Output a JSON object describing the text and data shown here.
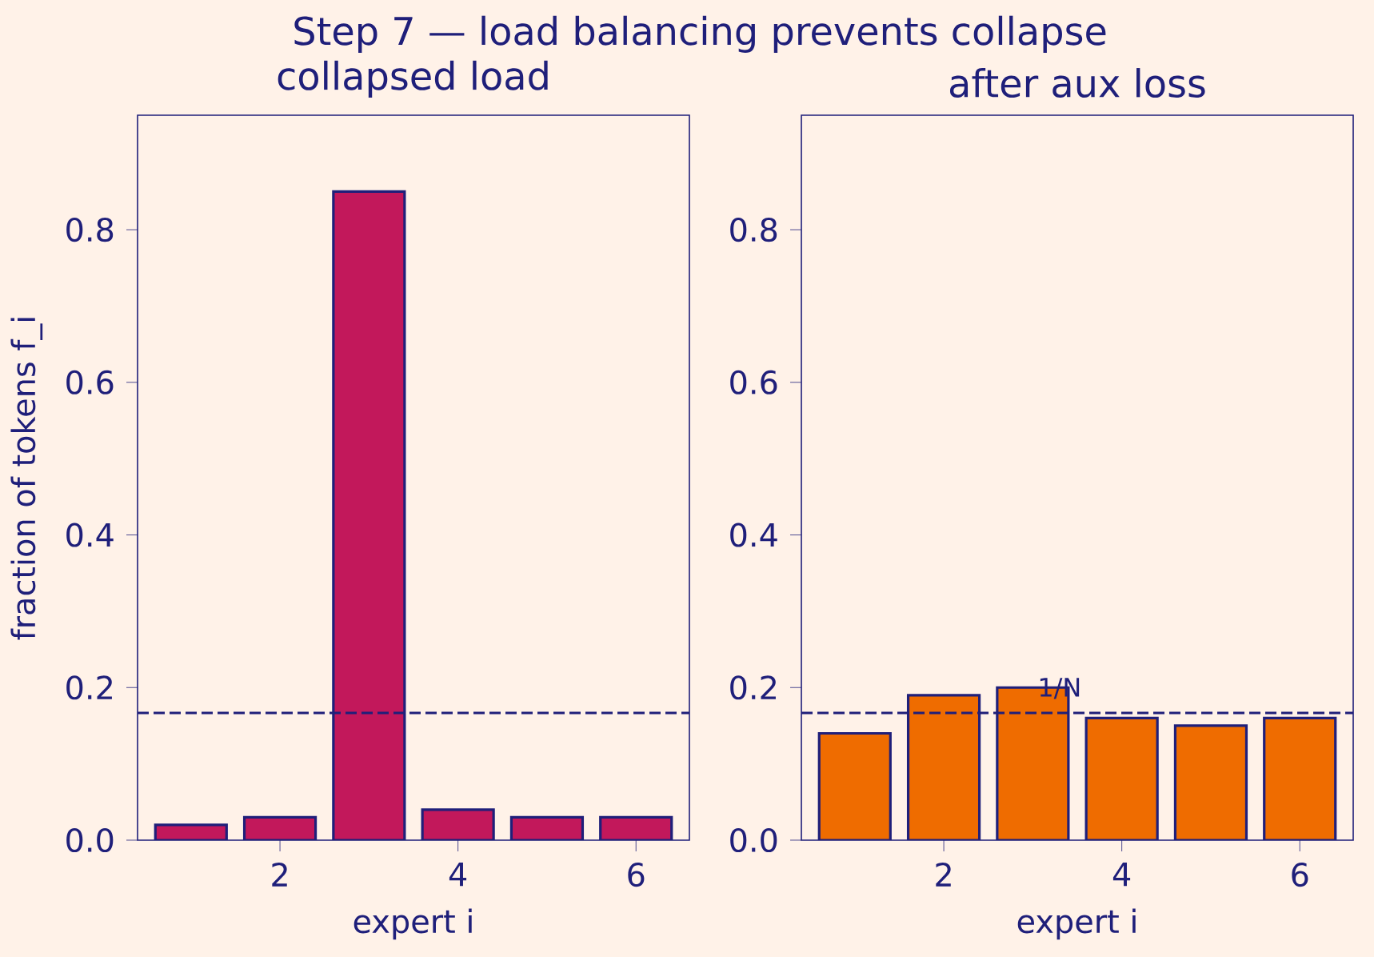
{
  "chart_data": [
    {
      "type": "bar",
      "title": "Step 7 — load balancing prevents collapse",
      "subtitle": "collapsed load",
      "xlabel": "expert i",
      "ylabel": "fraction of tokens f_i",
      "x": [
        1,
        2,
        3,
        4,
        5,
        6
      ],
      "values": [
        0.02,
        0.03,
        0.85,
        0.04,
        0.03,
        0.03
      ],
      "color": "#c2185b",
      "xlim": [
        0.4,
        6.6
      ],
      "xticks": [
        2,
        4,
        6
      ],
      "ylim": [
        0,
        0.95
      ],
      "yticks": [
        {
          "value": 0,
          "label": "0.0"
        },
        {
          "value": 0.2,
          "label": "0.2"
        },
        {
          "value": 0.4,
          "label": "0.4"
        },
        {
          "value": 0.6,
          "label": "0.6"
        },
        {
          "value": 0.8,
          "label": "0.8"
        }
      ],
      "ref_lines": [
        {
          "axis": "y",
          "value": 0.1667,
          "line_style": "dashed",
          "color": "#1f1f7a"
        }
      ]
    },
    {
      "type": "bar",
      "title": "after aux loss",
      "xlabel": "expert i",
      "x": [
        1,
        2,
        3,
        4,
        5,
        6
      ],
      "values": [
        0.14,
        0.19,
        0.2,
        0.16,
        0.15,
        0.16
      ],
      "color": "#ef6c00",
      "xlim": [
        0.4,
        6.6
      ],
      "xticks": [
        2,
        4,
        6
      ],
      "ylim": [
        0,
        0.95
      ],
      "yticks": [
        {
          "value": 0,
          "label": "0.0"
        },
        {
          "value": 0.2,
          "label": "0.2"
        },
        {
          "value": 0.4,
          "label": "0.4"
        },
        {
          "value": 0.6,
          "label": "0.6"
        },
        {
          "value": 0.8,
          "label": "0.8"
        }
      ],
      "ref_lines": [
        {
          "axis": "y",
          "value": 0.1667,
          "label": "1/N",
          "line_style": "dashed",
          "color": "#1f1f7a"
        }
      ]
    }
  ]
}
